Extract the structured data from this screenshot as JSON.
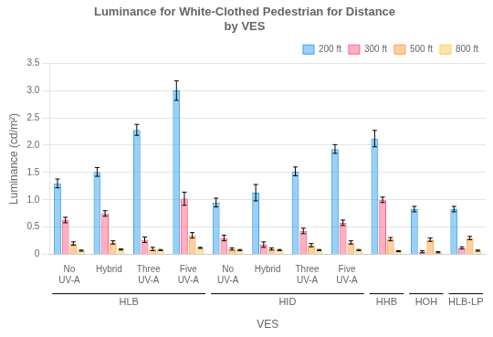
{
  "chart_data": {
    "type": "bar",
    "title": "Luminance for White-Clothed Pedestrian for Distance\nby VES",
    "xlabel": "VES",
    "ylabel": "Luminance (cd/m²)",
    "categories": [
      "No\nUV-A",
      "Hybrid",
      "Three\nUV-A",
      "Five\nUV-A",
      "No\nUV-A",
      "Hybrid",
      "Three\nUV-A",
      "Five\nUV-A",
      null,
      null,
      null
    ],
    "parent_categories": [
      "HLB",
      "HLB",
      "HLB",
      "HLB",
      "HID",
      "HID",
      "HID",
      "HID",
      "HHB",
      "HOH",
      "HLB-LP"
    ],
    "series": [
      {
        "name": "200 ft",
        "values": [
          1.3,
          1.51,
          2.28,
          3.0,
          0.95,
          1.13,
          1.52,
          1.93,
          2.12,
          0.83,
          0.83
        ],
        "errors": [
          0.08,
          0.08,
          0.1,
          0.18,
          0.08,
          0.15,
          0.08,
          0.08,
          0.15,
          0.05,
          0.05
        ]
      },
      {
        "name": "300 ft",
        "values": [
          0.63,
          0.75,
          0.27,
          1.02,
          0.3,
          0.18,
          0.43,
          0.58,
          1.0,
          0.05,
          0.12
        ],
        "errors": [
          0.05,
          0.05,
          0.05,
          0.12,
          0.05,
          0.05,
          0.05,
          0.05,
          0.05,
          0.02,
          0.02
        ]
      },
      {
        "name": "500 ft",
        "values": [
          0.2,
          0.22,
          0.1,
          0.35,
          0.1,
          0.1,
          0.17,
          0.22,
          0.28,
          0.27,
          0.3
        ],
        "errors": [
          0.03,
          0.03,
          0.03,
          0.05,
          0.02,
          0.02,
          0.03,
          0.03,
          0.03,
          0.03,
          0.03
        ]
      },
      {
        "name": "800 ft",
        "values": [
          0.07,
          0.09,
          0.08,
          0.12,
          0.08,
          0.08,
          0.08,
          0.08,
          0.06,
          0.04,
          0.07
        ],
        "errors": [
          0.01,
          0.01,
          0.01,
          0.01,
          0.01,
          0.01,
          0.01,
          0.01,
          0.01,
          0.01,
          0.01
        ]
      }
    ],
    "ylim": [
      0,
      3.5
    ],
    "yticks": [
      0,
      0.5,
      {
        "value": 1,
        "label": "1.0"
      },
      1.5,
      {
        "value": 2,
        "label": "2.0"
      },
      2.5,
      {
        "value": 3,
        "label": "3.0"
      },
      3.5
    ],
    "grid": true,
    "legend": "upper right"
  }
}
